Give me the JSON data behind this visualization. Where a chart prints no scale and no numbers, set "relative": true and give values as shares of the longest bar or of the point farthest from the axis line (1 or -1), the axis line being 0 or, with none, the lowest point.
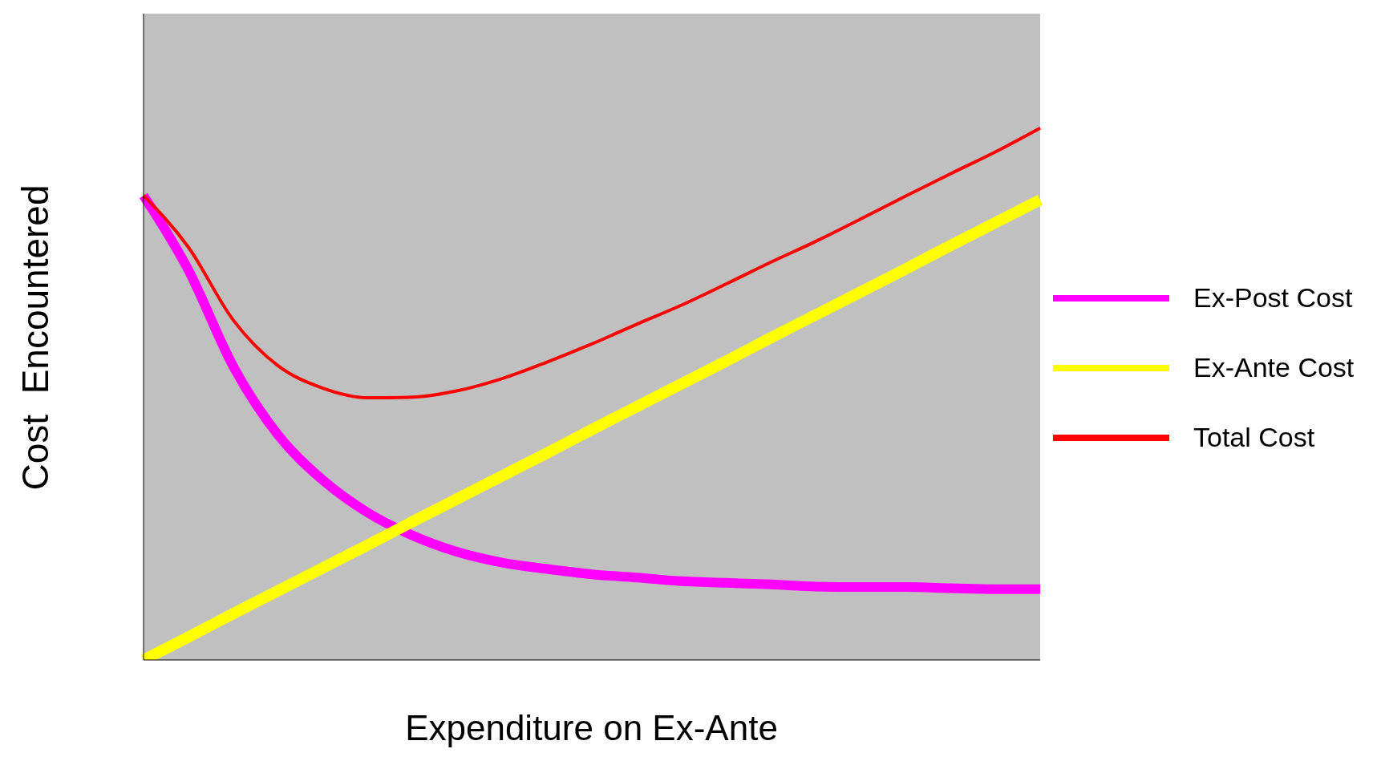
{
  "chart_data": {
    "type": "line",
    "relative": true,
    "xlabel": "Expenditure on Ex-Ante",
    "ylabel": "Cost  Encountered",
    "legend": "right",
    "marker": "none",
    "line_style": "solid",
    "categories": [
      null,
      null,
      null,
      null,
      null,
      null,
      null,
      null,
      null,
      null,
      null,
      null,
      null,
      null,
      null,
      null,
      null,
      null,
      null,
      null,
      null
    ],
    "series": [
      {
        "name": "Ex-Post Cost",
        "color": "#ff00ff",
        "values": [
          0.873,
          0.733,
          0.552,
          0.423,
          0.338,
          0.277,
          0.234,
          0.203,
          0.183,
          0.171,
          0.161,
          0.155,
          0.148,
          0.145,
          0.142,
          0.138,
          0.137,
          0.137,
          0.135,
          0.133,
          0.133
        ]
      },
      {
        "name": "Ex-Ante Cost",
        "color": "#ffff00",
        "values": [
          0,
          0.043,
          0.087,
          0.13,
          0.173,
          0.216,
          0.26,
          0.303,
          0.346,
          0.389,
          0.433,
          0.476,
          0.519,
          0.562,
          0.606,
          0.649,
          0.692,
          0.735,
          0.779,
          0.822,
          0.865
        ]
      },
      {
        "name": "Total Cost",
        "color": "#ff0000",
        "values": [
          0.873,
          0.776,
          0.639,
          0.553,
          0.511,
          0.493,
          0.494,
          0.506,
          0.529,
          0.56,
          0.594,
          0.631,
          0.667,
          0.707,
          0.748,
          0.787,
          0.829,
          0.872,
          0.914,
          0.955,
          1
        ]
      }
    ]
  }
}
